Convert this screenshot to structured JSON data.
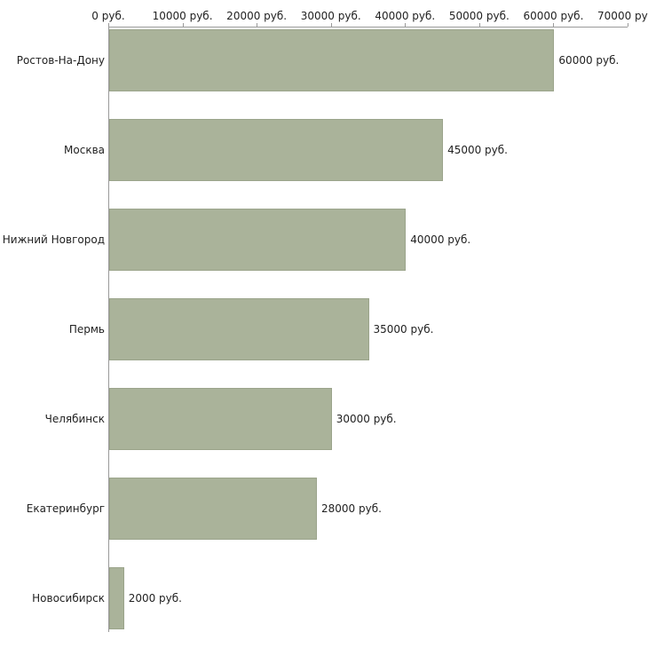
{
  "chart_data": {
    "type": "bar",
    "orientation": "horizontal",
    "title": "",
    "xlabel": "",
    "ylabel": "",
    "categories": [
      "Ростов-На-Дону",
      "Москва",
      "Нижний Новгород",
      "Пермь",
      "Челябинск",
      "Екатеринбург",
      "Новосибирск"
    ],
    "values": [
      60000,
      45000,
      40000,
      35000,
      30000,
      28000,
      2000
    ],
    "value_labels": [
      "60000 руб.",
      "45000 руб.",
      "40000 руб.",
      "35000 руб.",
      "30000 руб.",
      "28000 руб.",
      "2000 руб."
    ],
    "x_ticks": [
      0,
      10000,
      20000,
      30000,
      40000,
      50000,
      60000,
      70000
    ],
    "x_tick_labels": [
      "0 руб.",
      "10000 руб.",
      "20000 руб.",
      "30000 руб.",
      "40000 руб.",
      "50000 руб.",
      "60000 руб.",
      "70000 руб."
    ],
    "xlim": [
      0,
      70000
    ],
    "grid": false,
    "legend_position": "none",
    "bar_color": "#aab39a",
    "bar_border_color": "#9ba48b",
    "axis_color": "#9a9a9a",
    "text_color": "#222222"
  }
}
